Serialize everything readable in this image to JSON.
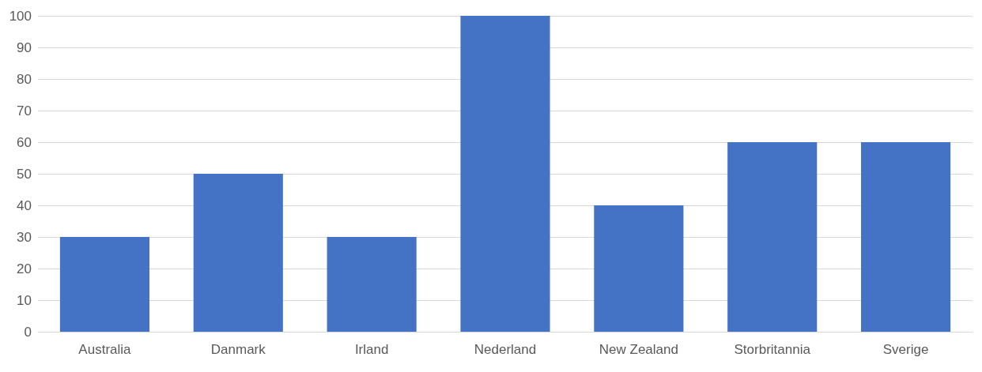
{
  "chart_data": {
    "type": "bar",
    "categories": [
      "Australia",
      "Danmark",
      "Irland",
      "Nederland",
      "New Zealand",
      "Storbritannia",
      "Sverige"
    ],
    "values": [
      30,
      50,
      30,
      100,
      40,
      60,
      60
    ],
    "color": "#4472c4",
    "ylim": [
      0,
      100
    ],
    "yticks": [
      0,
      10,
      20,
      30,
      40,
      50,
      60,
      70,
      80,
      90,
      100
    ],
    "grid": "y"
  }
}
